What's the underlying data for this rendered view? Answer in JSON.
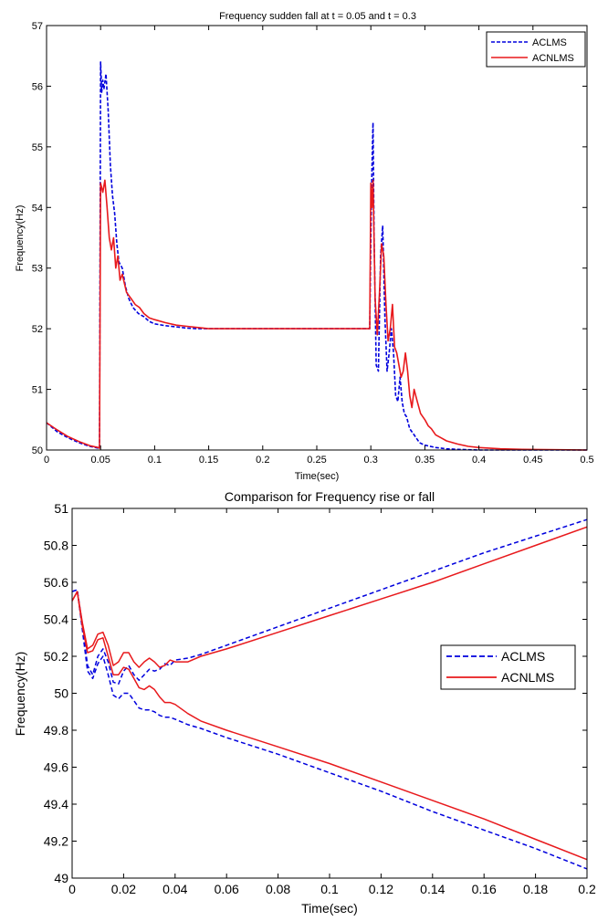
{
  "colors": {
    "aclms": "#0000dd",
    "acnlms": "#e8191c",
    "axis": "#000000",
    "background": "#ffffff"
  },
  "chart_data": [
    {
      "type": "line",
      "title": "Frequency  sudden fall at t = 0.05 and t = 0.3",
      "xlabel": "Time(sec)",
      "ylabel": "Frequency(Hz)",
      "xlim": [
        0,
        0.5
      ],
      "ylim": [
        50,
        57
      ],
      "xticks": [
        0,
        0.05,
        0.1,
        0.15,
        0.2,
        0.25,
        0.3,
        0.35,
        0.4,
        0.45,
        0.5
      ],
      "xtick_labels": [
        "0",
        "0.05",
        "0.1",
        "0.15",
        "0.2",
        "0.25",
        "0.3",
        "0.35",
        "0.4",
        "0.45",
        "0.5"
      ],
      "yticks": [
        50,
        51,
        52,
        53,
        54,
        55,
        56,
        57
      ],
      "ytick_labels": [
        "50",
        "51",
        "52",
        "53",
        "54",
        "55",
        "56",
        "57"
      ],
      "grid": false,
      "legend_position": "top-right",
      "series": [
        {
          "name": "ACLMS",
          "style": "dashed",
          "x": [
            0,
            0.01,
            0.02,
            0.03,
            0.04,
            0.048,
            0.049,
            0.05,
            0.051,
            0.052,
            0.053,
            0.055,
            0.057,
            0.059,
            0.061,
            0.063,
            0.065,
            0.067,
            0.07,
            0.073,
            0.076,
            0.08,
            0.085,
            0.09,
            0.095,
            0.1,
            0.11,
            0.12,
            0.13,
            0.14,
            0.15,
            0.165,
            0.2,
            0.25,
            0.299,
            0.3,
            0.301,
            0.302,
            0.303,
            0.305,
            0.307,
            0.309,
            0.311,
            0.313,
            0.315,
            0.317,
            0.319,
            0.321,
            0.323,
            0.325,
            0.327,
            0.329,
            0.331,
            0.333,
            0.336,
            0.34,
            0.345,
            0.35,
            0.36,
            0.37,
            0.38,
            0.4,
            0.43,
            0.5
          ],
          "y": [
            50.45,
            50.3,
            50.2,
            50.12,
            50.06,
            50.03,
            50.02,
            56.4,
            55.9,
            56.1,
            55.95,
            56.2,
            55.6,
            54.7,
            54.2,
            53.9,
            53.4,
            53.1,
            53.0,
            52.7,
            52.5,
            52.35,
            52.25,
            52.2,
            52.12,
            52.08,
            52.05,
            52.03,
            52.01,
            52.0,
            52.0,
            52.0,
            52.0,
            52.0,
            52.0,
            53.5,
            54.6,
            55.4,
            53.5,
            51.4,
            51.3,
            53.2,
            53.7,
            52.2,
            51.3,
            51.6,
            52.0,
            51.6,
            50.9,
            50.8,
            51.2,
            50.8,
            50.6,
            50.55,
            50.35,
            50.25,
            50.12,
            50.08,
            50.04,
            50.02,
            50.01,
            50.0,
            50.0,
            50.0
          ]
        },
        {
          "name": "ACNLMS",
          "style": "solid",
          "x": [
            0,
            0.01,
            0.02,
            0.03,
            0.04,
            0.048,
            0.049,
            0.05,
            0.052,
            0.054,
            0.056,
            0.058,
            0.06,
            0.062,
            0.064,
            0.066,
            0.068,
            0.07,
            0.074,
            0.078,
            0.082,
            0.086,
            0.09,
            0.095,
            0.1,
            0.11,
            0.12,
            0.13,
            0.14,
            0.15,
            0.2,
            0.25,
            0.299,
            0.3,
            0.301,
            0.302,
            0.304,
            0.306,
            0.308,
            0.31,
            0.312,
            0.314,
            0.316,
            0.318,
            0.32,
            0.322,
            0.324,
            0.326,
            0.328,
            0.33,
            0.332,
            0.334,
            0.336,
            0.338,
            0.34,
            0.343,
            0.346,
            0.35,
            0.353,
            0.356,
            0.36,
            0.365,
            0.37,
            0.38,
            0.39,
            0.4,
            0.42,
            0.44,
            0.5
          ],
          "y": [
            50.45,
            50.33,
            50.22,
            50.14,
            50.07,
            50.04,
            50.03,
            54.4,
            54.25,
            54.45,
            54.0,
            53.5,
            53.3,
            53.5,
            53.0,
            53.2,
            52.8,
            52.9,
            52.6,
            52.5,
            52.4,
            52.35,
            52.25,
            52.18,
            52.15,
            52.1,
            52.06,
            52.04,
            52.02,
            52.0,
            52.0,
            52.0,
            52.0,
            54.4,
            54.0,
            54.45,
            52.5,
            51.9,
            52.6,
            53.4,
            53.2,
            52.4,
            51.8,
            52.0,
            52.4,
            51.7,
            51.6,
            51.4,
            51.2,
            51.3,
            51.6,
            51.3,
            50.9,
            50.7,
            51.0,
            50.8,
            50.6,
            50.5,
            50.4,
            50.35,
            50.25,
            50.2,
            50.15,
            50.1,
            50.06,
            50.04,
            50.02,
            50.01,
            50.0
          ]
        }
      ]
    },
    {
      "type": "line",
      "title": "Comparison for Frequency rise or fall",
      "xlabel": "Time(sec)",
      "ylabel": "Frequency(Hz)",
      "xlim": [
        0,
        0.2
      ],
      "ylim": [
        49,
        51
      ],
      "xticks": [
        0,
        0.02,
        0.04,
        0.06,
        0.08,
        0.1,
        0.12,
        0.14,
        0.16,
        0.18,
        0.2
      ],
      "xtick_labels": [
        "0",
        "0.02",
        "0.04",
        "0.06",
        "0.08",
        "0.1",
        "0.12",
        "0.14",
        "0.16",
        "0.18",
        "0.2"
      ],
      "yticks": [
        49,
        49.2,
        49.4,
        49.6,
        49.8,
        50,
        50.2,
        50.4,
        50.6,
        50.8,
        51
      ],
      "ytick_labels": [
        "49",
        "49.2",
        "49.4",
        "49.6",
        "49.8",
        "50",
        "50.2",
        "50.4",
        "50.6",
        "50.8",
        "51"
      ],
      "grid": false,
      "legend_position": "center-right",
      "series": [
        {
          "name": "ACLMS",
          "style": "dashed",
          "x": [
            0,
            0.002,
            0.004,
            0.006,
            0.008,
            0.01,
            0.012,
            0.014,
            0.016,
            0.018,
            0.02,
            0.022,
            0.024,
            0.026,
            0.028,
            0.03,
            0.032,
            0.034,
            0.036,
            0.038,
            0.04,
            0.045,
            0.05,
            0.06,
            0.08,
            0.1,
            0.12,
            0.14,
            0.16,
            0.18,
            0.2
          ],
          "y": [
            50.55,
            50.56,
            50.37,
            50.15,
            50.1,
            50.2,
            50.24,
            50.17,
            50.06,
            50.05,
            50.12,
            50.15,
            50.1,
            50.07,
            50.1,
            50.13,
            50.12,
            50.13,
            50.16,
            50.15,
            50.18,
            50.19,
            50.21,
            50.26,
            50.36,
            50.46,
            50.56,
            50.66,
            50.76,
            50.85,
            50.94
          ]
        },
        {
          "name": "ACLMS",
          "style": "dashed",
          "x": [
            0,
            0.002,
            0.004,
            0.006,
            0.008,
            0.01,
            0.012,
            0.014,
            0.016,
            0.018,
            0.02,
            0.022,
            0.024,
            0.026,
            0.028,
            0.03,
            0.032,
            0.034,
            0.036,
            0.038,
            0.04,
            0.045,
            0.05,
            0.06,
            0.08,
            0.1,
            0.12,
            0.14,
            0.16,
            0.18,
            0.2
          ],
          "y": [
            50.55,
            50.56,
            50.34,
            50.12,
            50.08,
            50.16,
            50.2,
            50.1,
            49.99,
            49.97,
            50.0,
            50.0,
            49.96,
            49.92,
            49.91,
            49.91,
            49.9,
            49.88,
            49.87,
            49.87,
            49.86,
            49.83,
            49.81,
            49.76,
            49.67,
            49.57,
            49.47,
            49.36,
            49.26,
            49.16,
            49.05
          ]
        },
        {
          "name": "ACNLMS",
          "style": "solid",
          "x": [
            0,
            0.002,
            0.004,
            0.006,
            0.008,
            0.01,
            0.012,
            0.014,
            0.016,
            0.018,
            0.02,
            0.022,
            0.024,
            0.026,
            0.028,
            0.03,
            0.032,
            0.034,
            0.036,
            0.038,
            0.04,
            0.045,
            0.05,
            0.06,
            0.08,
            0.1,
            0.12,
            0.14,
            0.16,
            0.18,
            0.2
          ],
          "y": [
            50.5,
            50.55,
            50.38,
            50.24,
            50.26,
            50.32,
            50.33,
            50.26,
            50.15,
            50.17,
            50.22,
            50.22,
            50.17,
            50.14,
            50.17,
            50.19,
            50.17,
            50.14,
            50.15,
            50.18,
            50.17,
            50.17,
            50.2,
            50.24,
            50.33,
            50.42,
            50.51,
            50.6,
            50.7,
            50.8,
            50.9
          ]
        },
        {
          "name": "ACNLMS",
          "style": "solid",
          "x": [
            0,
            0.002,
            0.004,
            0.006,
            0.008,
            0.01,
            0.012,
            0.014,
            0.016,
            0.018,
            0.02,
            0.022,
            0.024,
            0.026,
            0.028,
            0.03,
            0.032,
            0.034,
            0.036,
            0.038,
            0.04,
            0.045,
            0.05,
            0.06,
            0.08,
            0.1,
            0.12,
            0.14,
            0.16,
            0.18,
            0.2
          ],
          "y": [
            50.5,
            50.55,
            50.36,
            50.22,
            50.23,
            50.29,
            50.3,
            50.2,
            50.1,
            50.1,
            50.14,
            50.13,
            50.08,
            50.03,
            50.02,
            50.04,
            50.02,
            49.98,
            49.95,
            49.95,
            49.94,
            49.89,
            49.85,
            49.8,
            49.71,
            49.62,
            49.52,
            49.42,
            49.32,
            49.21,
            49.1
          ]
        }
      ],
      "legend_entries": [
        "ACLMS",
        "ACNLMS"
      ]
    }
  ]
}
